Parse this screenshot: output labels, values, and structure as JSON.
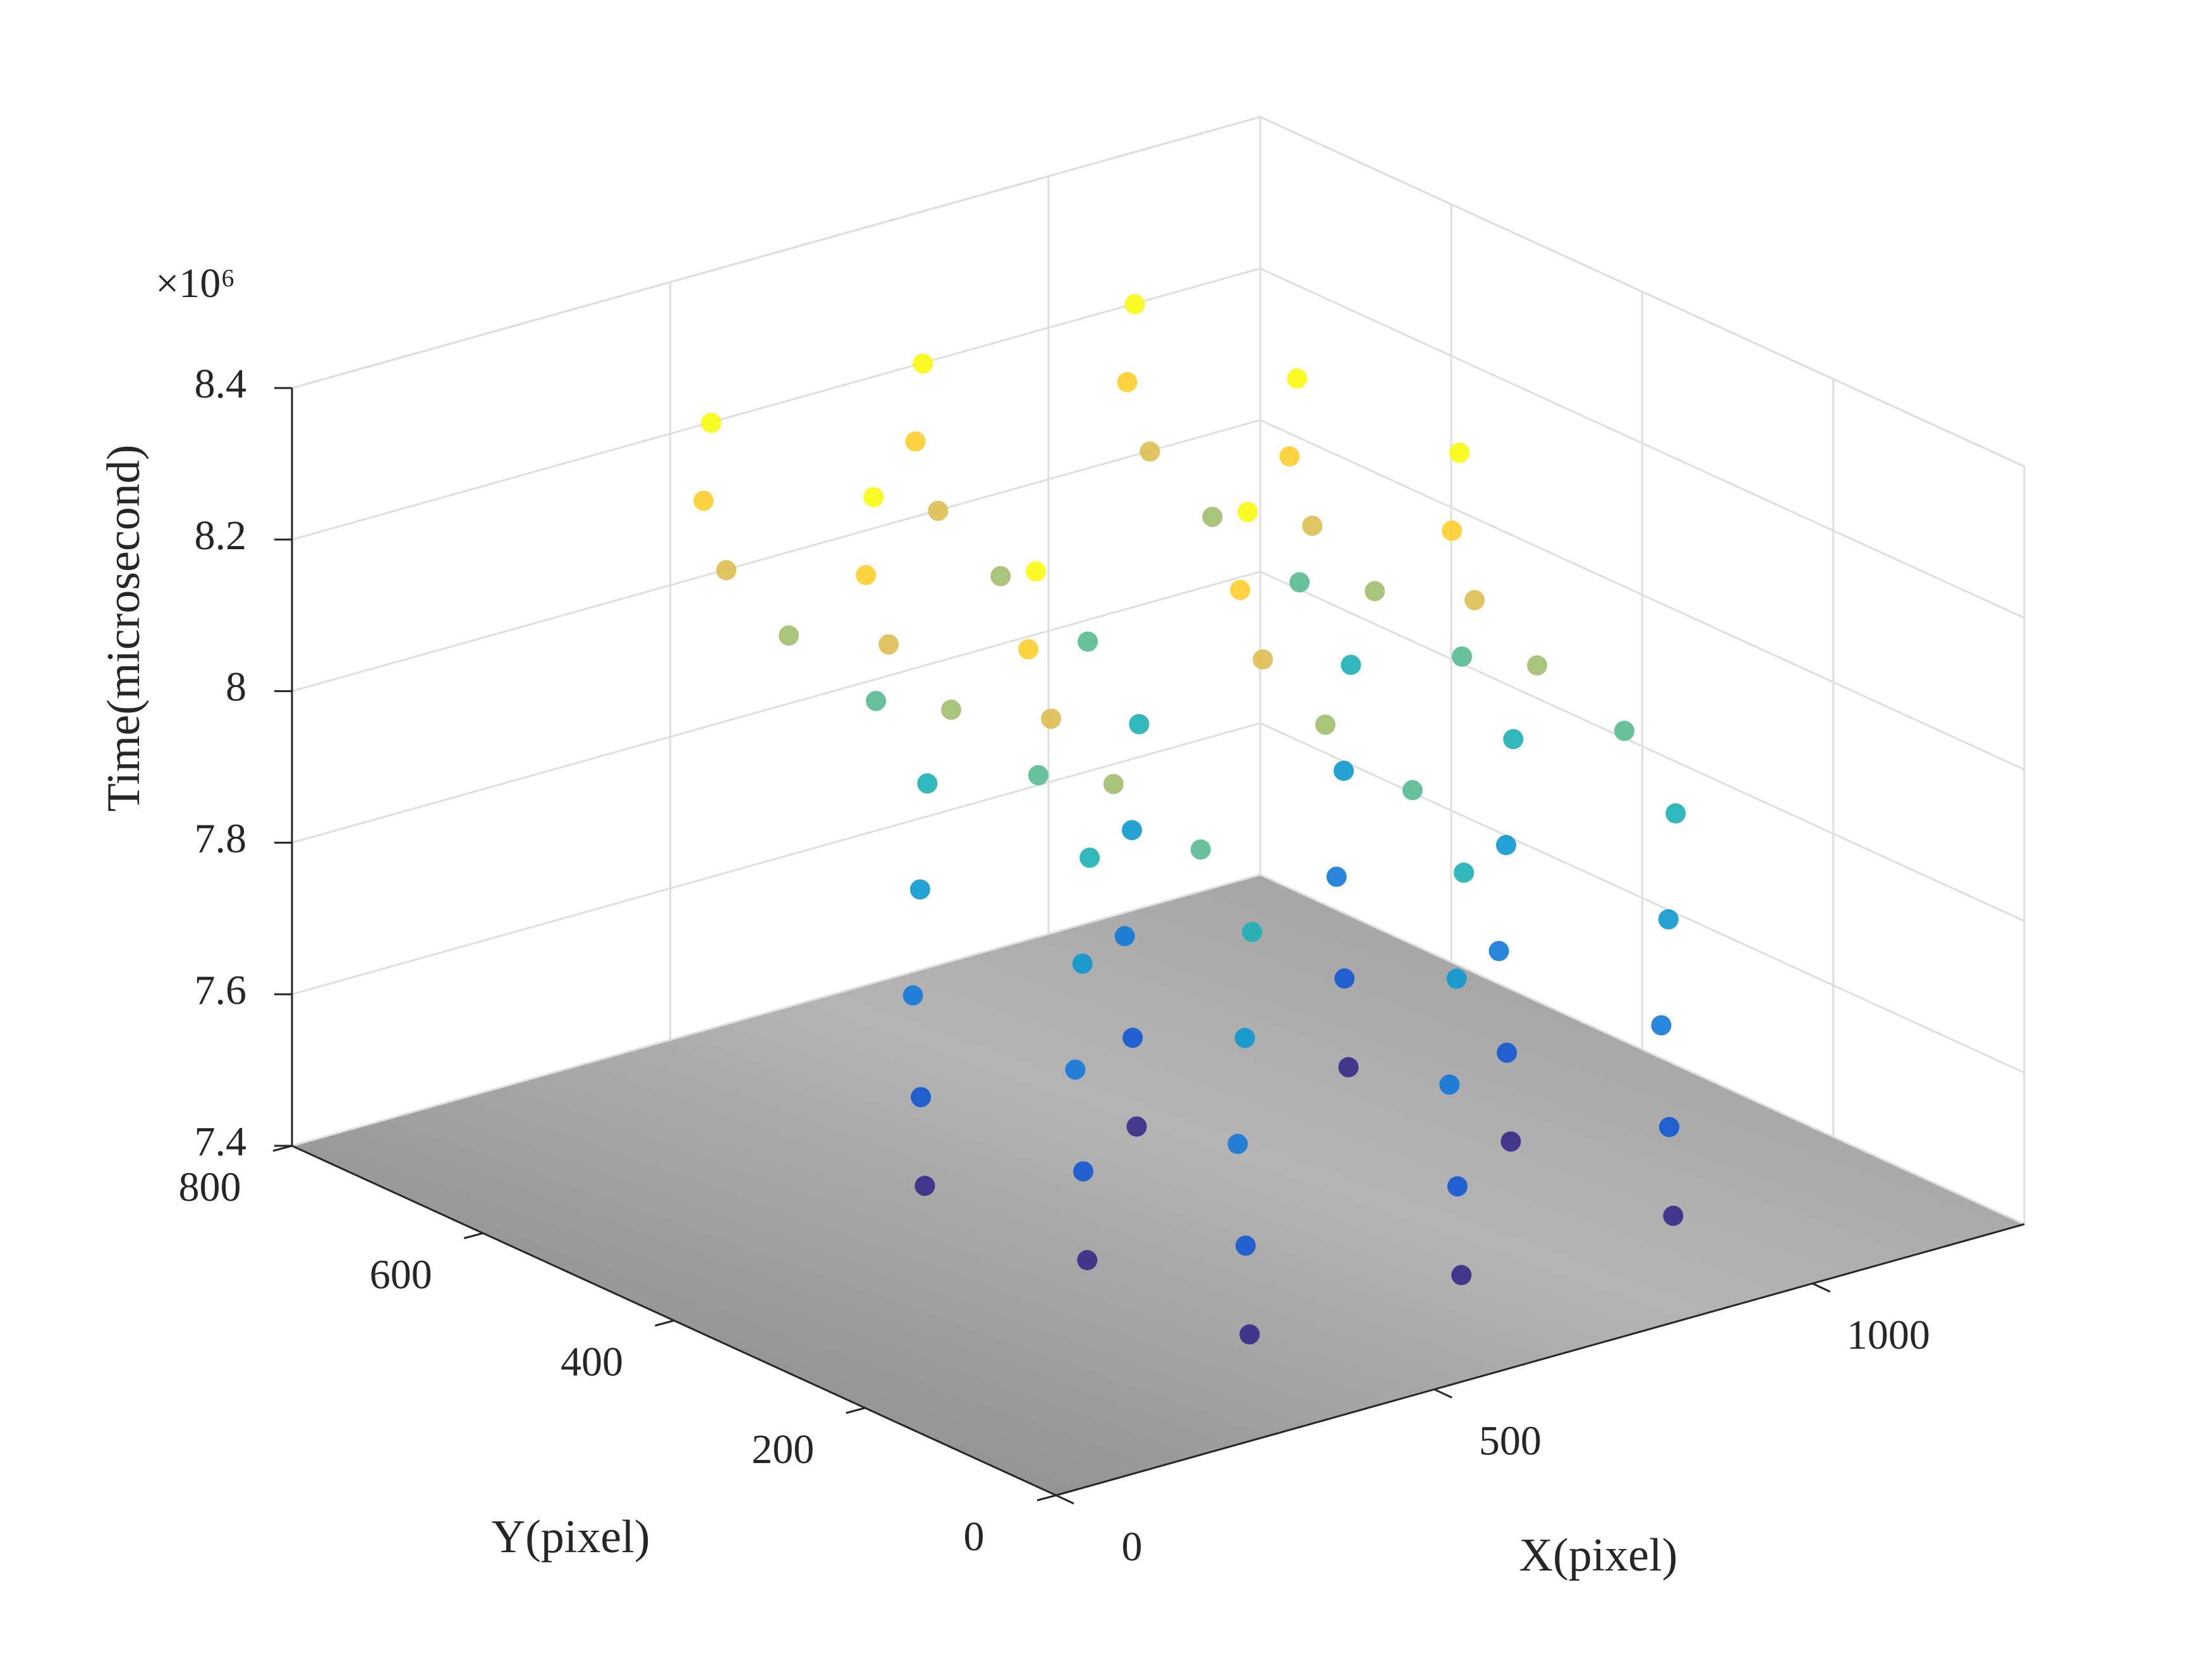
{
  "chart_data": {
    "type": "scatter3d",
    "xlabel": "X(pixel)",
    "ylabel": "Y(pixel)",
    "zlabel": "Time(microsecond)",
    "zlabel_exponent": "×10⁶",
    "xlim": [
      0,
      1280
    ],
    "ylim": [
      0,
      800
    ],
    "zlim": [
      7400000,
      8400000
    ],
    "xticks": [
      0,
      500,
      1000
    ],
    "yticks": [
      0,
      200,
      400,
      600,
      800
    ],
    "zticks": [
      {
        "value": 7400000,
        "label": "7.4"
      },
      {
        "value": 7600000,
        "label": "7.6"
      },
      {
        "value": 7800000,
        "label": "7.8"
      },
      {
        "value": 8000000,
        "label": "8"
      },
      {
        "value": 8200000,
        "label": "8.2"
      },
      {
        "value": 8400000,
        "label": "8.4"
      }
    ],
    "grid": true,
    "colormap": [
      "#352a87",
      "#0f5cdd",
      "#1481d6",
      "#06a4ca",
      "#2eb7a4",
      "#87bf77",
      "#d1bb59",
      "#fec832",
      "#f9fb0e"
    ],
    "series": [
      {
        "x": [
          420,
          980,
          980,
          420,
          700,
          700,
          420,
          980,
          440,
          1000,
          1000,
          440,
          720,
          720,
          440,
          1000,
          480,
          1040,
          1040,
          480,
          760,
          760,
          480,
          1040,
          540,
          1100,
          1100,
          540,
          820,
          820,
          540,
          1100,
          600,
          1160,
          1160,
          600,
          880,
          880,
          600,
          1160,
          570,
          1130,
          1130,
          570,
          850,
          850,
          570,
          1130,
          480,
          1040,
          1040,
          480,
          760,
          760,
          480,
          1040,
          410,
          970,
          970,
          410,
          690,
          690,
          410,
          970,
          380,
          940,
          940,
          380,
          660,
          660,
          380,
          940,
          390,
          950,
          950,
          390,
          670,
          670,
          390,
          950
        ],
        "y": [
          130,
          130,
          470,
          470,
          130,
          470,
          300,
          300,
          150,
          150,
          490,
          490,
          150,
          490,
          320,
          320,
          190,
          190,
          530,
          530,
          190,
          530,
          360,
          360,
          230,
          230,
          570,
          570,
          230,
          570,
          400,
          400,
          270,
          270,
          610,
          610,
          270,
          610,
          440,
          440,
          300,
          300,
          640,
          640,
          300,
          640,
          470,
          470,
          320,
          320,
          660,
          660,
          320,
          660,
          490,
          490,
          330,
          330,
          670,
          670,
          330,
          670,
          500,
          500,
          330,
          330,
          670,
          670,
          330,
          670,
          500,
          500,
          330,
          330,
          670,
          670,
          330,
          670,
          500,
          500
        ],
        "z": [
          7420000,
          7420000,
          7420000,
          7420000,
          7420000,
          7420000,
          7420000,
          7420000,
          7520000,
          7520000,
          7520000,
          7520000,
          7520000,
          7520000,
          7520000,
          7520000,
          7620000,
          7620000,
          7620000,
          7620000,
          7620000,
          7620000,
          7620000,
          7620000,
          7720000,
          7720000,
          7720000,
          7720000,
          7720000,
          7720000,
          7720000,
          7720000,
          7820000,
          7820000,
          7820000,
          7820000,
          7820000,
          7820000,
          7820000,
          7820000,
          7920000,
          7920000,
          7920000,
          7920000,
          7920000,
          7920000,
          7920000,
          7920000,
          8020000,
          8020000,
          8020000,
          8020000,
          8020000,
          8020000,
          8020000,
          8020000,
          8120000,
          8120000,
          8120000,
          8120000,
          8120000,
          8120000,
          8120000,
          8120000,
          8220000,
          8220000,
          8220000,
          8220000,
          8220000,
          8220000,
          8220000,
          8220000,
          8320000,
          8320000,
          8320000,
          8320000,
          8320000,
          8320000,
          8320000,
          8320000
        ]
      }
    ]
  }
}
